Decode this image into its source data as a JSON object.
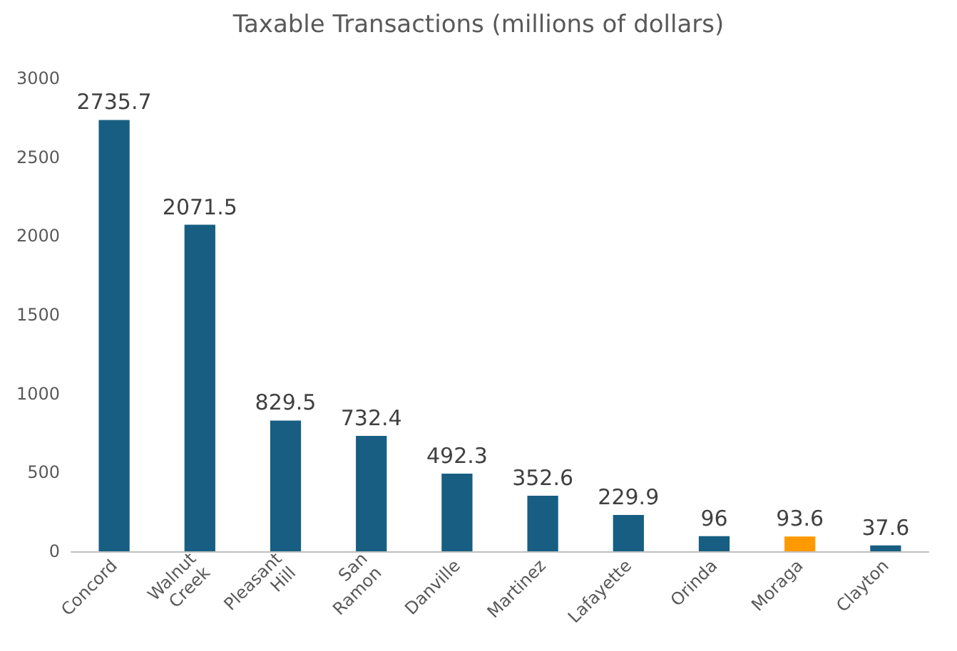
{
  "chart_data": {
    "type": "bar",
    "title": "Taxable Transactions (millions of dollars)",
    "categories": [
      "Concord",
      "Walnut Creek",
      "Pleasant Hill",
      "San Ramon",
      "Danville",
      "Martinez",
      "Lafayette",
      "Orinda",
      "Moraga",
      "Clayton"
    ],
    "values": [
      2735.7,
      2071.5,
      829.5,
      732.4,
      492.3,
      352.6,
      229.9,
      96,
      93.6,
      37.6
    ],
    "colors": [
      "#175e82",
      "#175e82",
      "#175e82",
      "#175e82",
      "#175e82",
      "#175e82",
      "#175e82",
      "#175e82",
      "#ff9900",
      "#175e82"
    ],
    "ylim": [
      0,
      3000
    ],
    "yticks": [
      0,
      500,
      1000,
      1500,
      2000,
      2500,
      3000
    ],
    "grid": false,
    "data_labels": true
  }
}
